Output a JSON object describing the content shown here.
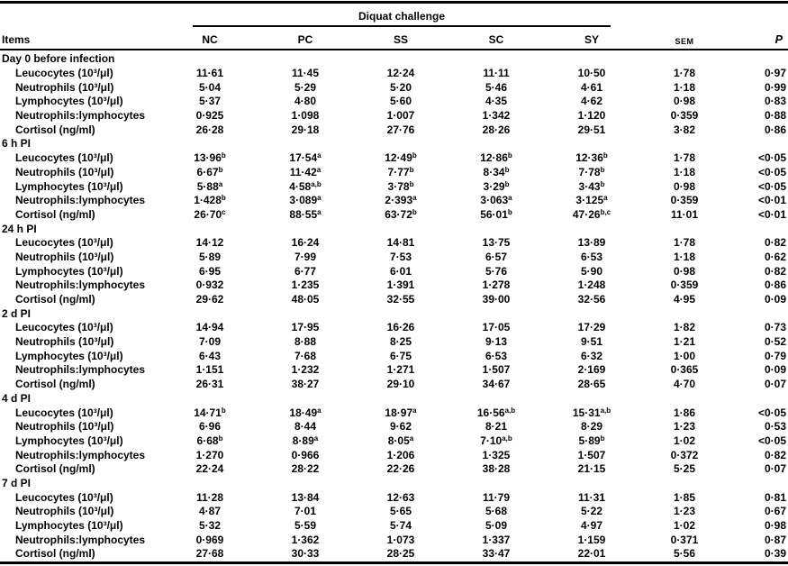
{
  "table": {
    "span_header": "Diquat challenge",
    "items_header": "Items",
    "group_columns": [
      "NC",
      "PC",
      "SS",
      "SC",
      "SY"
    ],
    "sem_label": "SEM",
    "p_label": "P",
    "sections": [
      {
        "label": "Day 0 before infection",
        "rows": [
          {
            "item": "Leucocytes (10³/μl)",
            "values": [
              "11·61",
              "11·45",
              "12·24",
              "11·11",
              "10·50"
            ],
            "sem": "1·78",
            "p": "0·97"
          },
          {
            "item": "Neutrophils (10³/μl)",
            "values": [
              "5·04",
              "5·29",
              "5·20",
              "5·46",
              "4·61"
            ],
            "sem": "1·18",
            "p": "0·99"
          },
          {
            "item": "Lymphocytes (10³/μl)",
            "values": [
              "5·37",
              "4·80",
              "5·60",
              "4·35",
              "4·62"
            ],
            "sem": "0·98",
            "p": "0·83"
          },
          {
            "item": "Neutrophils:lymphocytes",
            "values": [
              "0·925",
              "1·098",
              "1·007",
              "1·342",
              "1·120"
            ],
            "sem": "0·359",
            "p": "0·88"
          },
          {
            "item": "Cortisol (ng/ml)",
            "values": [
              "26·28",
              "29·18",
              "27·76",
              "28·26",
              "29·51"
            ],
            "sem": "3·82",
            "p": "0·86"
          }
        ]
      },
      {
        "label": "6 h PI",
        "rows": [
          {
            "item": "Leucocytes (10³/μl)",
            "values": [
              "13·96^b",
              "17·54^a",
              "12·49^b",
              "12·86^b",
              "12·36^b"
            ],
            "sem": "1·78",
            "p": "<0·05"
          },
          {
            "item": "Neutrophils (10³/μl)",
            "values": [
              "6·67^b",
              "11·42^a",
              "7·77^b",
              "8·34^b",
              "7·78^b"
            ],
            "sem": "1·18",
            "p": "<0·05"
          },
          {
            "item": "Lymphocytes (10³/μl)",
            "values": [
              "5·88^a",
              "4·58^a,b",
              "3·78^b",
              "3·29^b",
              "3·43^b"
            ],
            "sem": "0·98",
            "p": "<0·05"
          },
          {
            "item": "Neutrophils:lymphocytes",
            "values": [
              "1·428^b",
              "3·089^a",
              "2·393^a",
              "3·063^a",
              "3·125^a"
            ],
            "sem": "0·359",
            "p": "<0·01"
          },
          {
            "item": "Cortisol (ng/ml)",
            "values": [
              "26·70^c",
              "88·55^a",
              "63·72^b",
              "56·01^b",
              "47·26^b,c"
            ],
            "sem": "11·01",
            "p": "<0·01"
          }
        ]
      },
      {
        "label": "24 h PI",
        "rows": [
          {
            "item": "Leucocytes (10³/μl)",
            "values": [
              "14·12",
              "16·24",
              "14·81",
              "13·75",
              "13·89"
            ],
            "sem": "1·78",
            "p": "0·82"
          },
          {
            "item": "Neutrophils (10³/μl)",
            "values": [
              "5·89",
              "7·99",
              "7·53",
              "6·57",
              "6·53"
            ],
            "sem": "1·18",
            "p": "0·62"
          },
          {
            "item": "Lymphocytes (10³/μl)",
            "values": [
              "6·95",
              "6·77",
              "6·01",
              "5·76",
              "5·90"
            ],
            "sem": "0·98",
            "p": "0·82"
          },
          {
            "item": "Neutrophils:lymphocytes",
            "values": [
              "0·932",
              "1·235",
              "1·391",
              "1·278",
              "1·248"
            ],
            "sem": "0·359",
            "p": "0·86"
          },
          {
            "item": "Cortisol (ng/ml)",
            "values": [
              "29·62",
              "48·05",
              "32·55",
              "39·00",
              "32·56"
            ],
            "sem": "4·95",
            "p": "0·09"
          }
        ]
      },
      {
        "label": "2 d PI",
        "rows": [
          {
            "item": "Leucocytes (10³/μl)",
            "values": [
              "14·94",
              "17·95",
              "16·26",
              "17·05",
              "17·29"
            ],
            "sem": "1·82",
            "p": "0·73"
          },
          {
            "item": "Neutrophils (10³/μl)",
            "values": [
              "7·09",
              "8·88",
              "8·25",
              "9·13",
              "9·51"
            ],
            "sem": "1·21",
            "p": "0·52"
          },
          {
            "item": "Lymphocytes (10³/μl)",
            "values": [
              "6·43",
              "7·68",
              "6·75",
              "6·53",
              "6·32"
            ],
            "sem": "1·00",
            "p": "0·79"
          },
          {
            "item": "Neutrophils:lymphocytes",
            "values": [
              "1·151",
              "1·232",
              "1·271",
              "1·507",
              "2·169"
            ],
            "sem": "0·365",
            "p": "0·09"
          },
          {
            "item": "Cortisol (ng/ml)",
            "values": [
              "26·31",
              "38·27",
              "29·10",
              "34·67",
              "28·65"
            ],
            "sem": "4·70",
            "p": "0·07"
          }
        ]
      },
      {
        "label": "4 d PI",
        "rows": [
          {
            "item": "Leucocytes (10³/μl)",
            "values": [
              "14·71^b",
              "18·49^a",
              "18·97^a",
              "16·56^a,b",
              "15·31^a,b"
            ],
            "sem": "1·86",
            "p": "<0·05"
          },
          {
            "item": "Neutrophils (10³/μl)",
            "values": [
              "6·96",
              "8·44",
              "9·62",
              "8·21",
              "8·29"
            ],
            "sem": "1·23",
            "p": "0·53"
          },
          {
            "item": "Lymphocytes (10³/μl)",
            "values": [
              "6·68^b",
              "8·89^a",
              "8·05^a",
              "7·10^a,b",
              "5·89^b"
            ],
            "sem": "1·02",
            "p": "<0·05"
          },
          {
            "item": "Neutrophils:lymphocytes",
            "values": [
              "1·270",
              "0·966",
              "1·206",
              "1·325",
              "1·507"
            ],
            "sem": "0·372",
            "p": "0·82"
          },
          {
            "item": "Cortisol (ng/ml)",
            "values": [
              "22·24",
              "28·22",
              "22·26",
              "38·28",
              "21·15"
            ],
            "sem": "5·25",
            "p": "0·07"
          }
        ]
      },
      {
        "label": "7 d PI",
        "rows": [
          {
            "item": "Leucocytes (10³/μl)",
            "values": [
              "11·28",
              "13·84",
              "12·63",
              "11·79",
              "11·31"
            ],
            "sem": "1·85",
            "p": "0·81"
          },
          {
            "item": "Neutrophils (10³/μl)",
            "values": [
              "4·87",
              "7·01",
              "5·65",
              "5·68",
              "5·22"
            ],
            "sem": "1·23",
            "p": "0·67"
          },
          {
            "item": "Lymphocytes (10³/μl)",
            "values": [
              "5·32",
              "5·59",
              "5·74",
              "5·09",
              "4·97"
            ],
            "sem": "1·02",
            "p": "0·98"
          },
          {
            "item": "Neutrophils:lymphocytes",
            "values": [
              "0·969",
              "1·362",
              "1·073",
              "1·337",
              "1·159"
            ],
            "sem": "0·371",
            "p": "0·87"
          },
          {
            "item": "Cortisol (ng/ml)",
            "values": [
              "27·68",
              "30·33",
              "28·25",
              "33·47",
              "22·01"
            ],
            "sem": "5·56",
            "p": "0·39"
          }
        ]
      }
    ]
  }
}
